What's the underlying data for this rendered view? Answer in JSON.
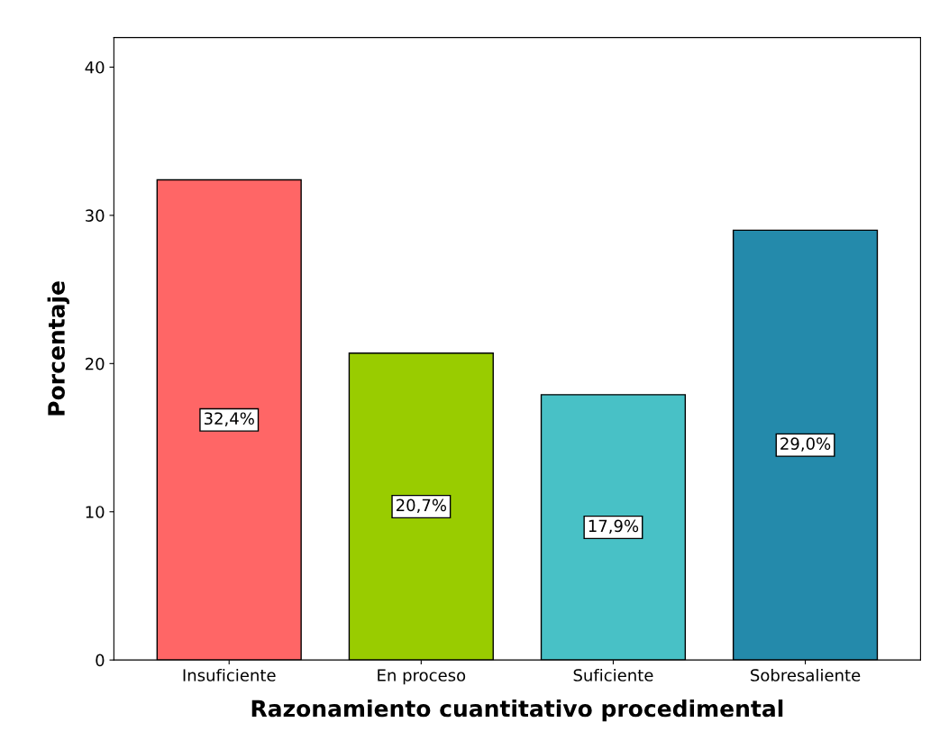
{
  "chart_data": {
    "type": "bar",
    "xlabel": "Razonamiento cuantitativo procedimental",
    "ylabel": "Porcentaje",
    "categories": [
      "Insuficiente",
      "En proceso",
      "Suficiente",
      "Sobresaliente"
    ],
    "values": [
      32.4,
      20.7,
      17.9,
      29.0
    ],
    "colors": [
      "#ff6666",
      "#99cc00",
      "#48c1c6",
      "#248aab"
    ],
    "value_labels": [
      "32,4%",
      "20,7%",
      "17,9%",
      "29,0%"
    ],
    "ylim": [
      0,
      42
    ],
    "yticks": [
      0,
      10,
      20,
      30,
      40
    ],
    "grid": false,
    "legend": false
  }
}
